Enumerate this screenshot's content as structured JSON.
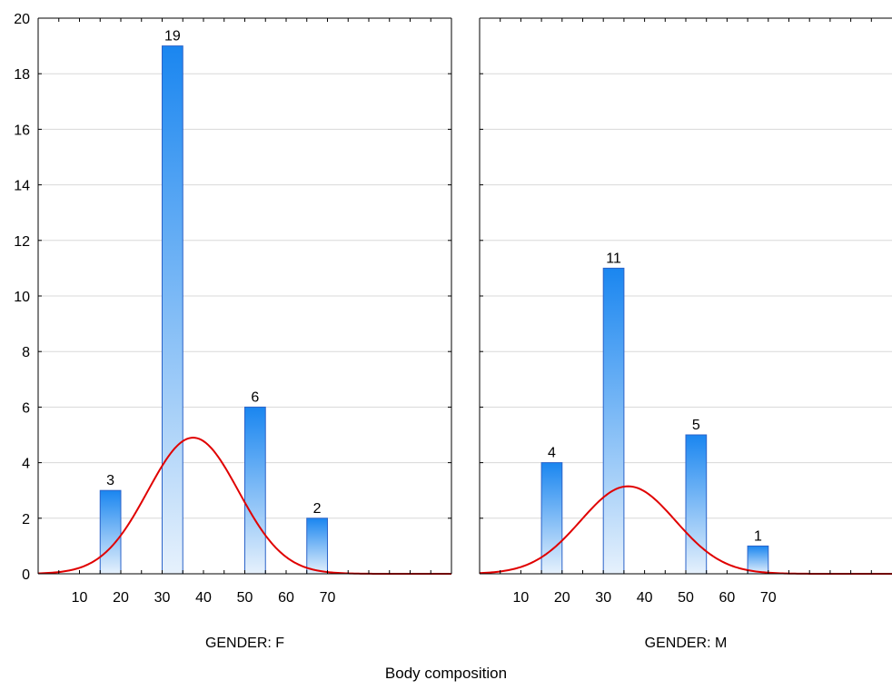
{
  "chart_data": {
    "type": "bar",
    "xlabel": "Body composition",
    "ylim": [
      0,
      20
    ],
    "y_ticks": [
      0,
      2,
      4,
      6,
      8,
      10,
      12,
      14,
      16,
      18,
      20
    ],
    "x_ticks": [
      10,
      20,
      30,
      40,
      50,
      60,
      70
    ],
    "x_range": [
      0,
      100
    ],
    "grid": true,
    "fit_curve": "normal",
    "colors": {
      "bar_gradient_top": "#1a86f0",
      "bar_gradient_bottom": "#e6f1fc",
      "bar_stroke": "#2b63c9",
      "curve": "#e00000",
      "grid": "#d8d8d8",
      "axis": "#000000"
    },
    "panels": [
      {
        "title": "GENDER: F",
        "bars": [
          {
            "x": 17.5,
            "value": 3,
            "label": "3"
          },
          {
            "x": 32.5,
            "value": 19,
            "label": "19"
          },
          {
            "x": 52.5,
            "value": 6,
            "label": "6"
          },
          {
            "x": 67.5,
            "value": 2,
            "label": "2"
          }
        ],
        "curve": {
          "mean": 37.5,
          "sd": 11,
          "peak": 4.9
        }
      },
      {
        "title": "GENDER: M",
        "bars": [
          {
            "x": 17.5,
            "value": 4,
            "label": "4"
          },
          {
            "x": 32.5,
            "value": 11,
            "label": "11"
          },
          {
            "x": 52.5,
            "value": 5,
            "label": "5"
          },
          {
            "x": 67.5,
            "value": 1,
            "label": "1"
          }
        ],
        "curve": {
          "mean": 36,
          "sd": 11.5,
          "peak": 3.15
        }
      }
    ]
  }
}
